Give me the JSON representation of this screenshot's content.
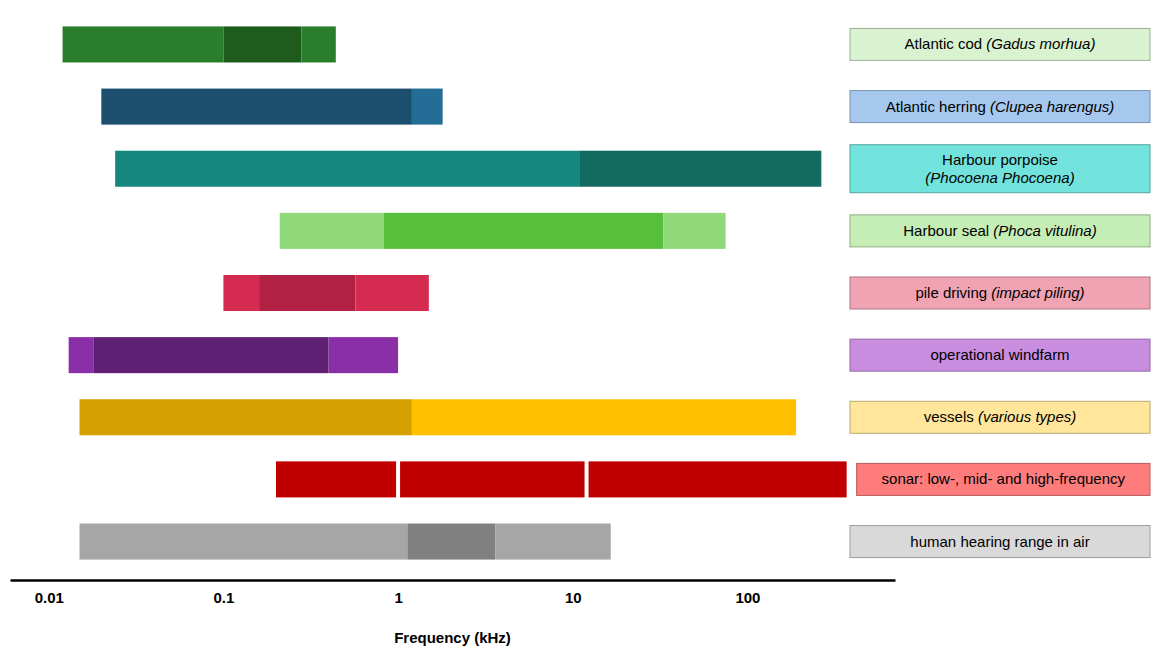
{
  "chart_data": {
    "type": "range",
    "orientation": "horizontal",
    "log": "x",
    "legend": "right",
    "x_label": "Frequency (kHz)",
    "xlim": [
      0.006,
      700
    ],
    "xticks": [
      0.01,
      0.1,
      1,
      10,
      100
    ],
    "series": [
      {
        "name": "Atlantic cod (Gadus morhua)",
        "color": "#d9f2d0",
        "values": [
          0.012,
          0.1,
          0.28,
          0.44
        ],
        "colors": [
          "#2a7d2a",
          "#1d5c1d",
          "#2a7d2a"
        ]
      },
      {
        "name": "Atlantic herring (Clupea harengus)",
        "color": "#a6c8ee",
        "values": [
          0.02,
          1.2,
          1.8
        ],
        "colors": [
          "#1c4e70",
          "#236d96"
        ]
      },
      {
        "name": "Harbour porpoise (Phocoena Phocoena)",
        "color": "#72e3dc",
        "values": [
          0.024,
          11,
          265
        ],
        "colors": [
          "#16877f",
          "#136a60"
        ]
      },
      {
        "name": "Harbour seal (Phoca vitulina)",
        "color": "#c5eeb6",
        "values": [
          0.21,
          0.83,
          33,
          75
        ],
        "colors": [
          "#8fd97a",
          "#58bf3a",
          "#8fd97a"
        ]
      },
      {
        "name": "pile driving (impact piling)",
        "color": "#f0a3b3",
        "values": [
          0.1,
          0.16,
          0.57,
          1.5
        ],
        "colors": [
          "#d52b50",
          "#b22143",
          "#d52b50"
        ]
      },
      {
        "name": "operational windfarm",
        "color": "#c98ee0",
        "values": [
          0.013,
          0.018,
          0.4,
          1
        ],
        "colors": [
          "#8a2fa8",
          "#5f1f73",
          "#8a2fa8"
        ]
      },
      {
        "name": "vessels (various types)",
        "color": "#ffe69a",
        "values": [
          0.015,
          1.2,
          190
        ],
        "colors": [
          "#d4a000",
          "#ffc000"
        ]
      },
      {
        "name": "sonar: low-, mid- and high-frequency",
        "color": "#ff7c7c",
        "values": [
          0.2,
          1,
          12,
          370
        ],
        "colors": [
          "#c00000",
          "#c00000",
          "#c00000"
        ]
      },
      {
        "name": "human hearing range in air",
        "color": "#d9d9d9",
        "values": [
          0.015,
          1.13,
          3.6,
          16.5
        ],
        "colors": [
          "#a6a6a6",
          "#808080",
          "#a6a6a6"
        ]
      }
    ]
  }
}
